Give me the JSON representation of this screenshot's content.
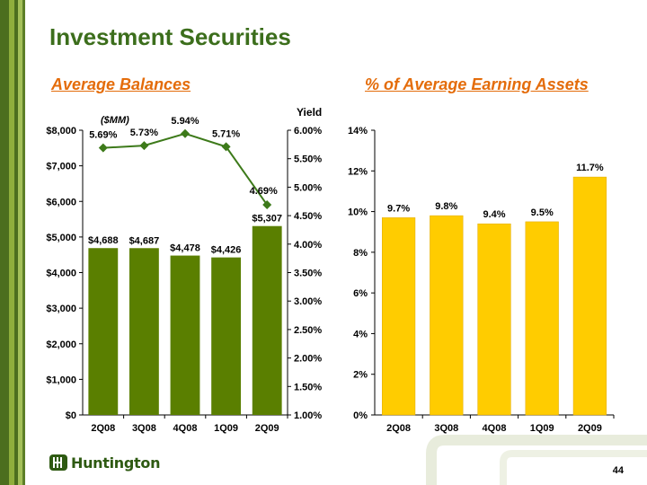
{
  "slide": {
    "title": "Investment Securities",
    "page_number": "44",
    "logo_text": "Huntington",
    "colors": {
      "title": "#3c6e1c",
      "subtitle": "#e46c0a",
      "bar_green": "#5a7f00",
      "line_green": "#3d7a1a",
      "bar_gold": "#ffcc00",
      "stripe_dark": "#4c6e1e",
      "stripe_light": "#8fae3c"
    }
  },
  "chart_data": [
    {
      "type": "bar",
      "title": "Average Balances",
      "unit_label": "($MM)",
      "categories": [
        "2Q08",
        "3Q08",
        "4Q08",
        "1Q09",
        "2Q09"
      ],
      "values": [
        4688,
        4687,
        4478,
        4426,
        5307
      ],
      "value_labels": [
        "$4,688",
        "$4,687",
        "$4,478",
        "$4,426",
        "$5,307"
      ],
      "ylim": [
        0,
        8000
      ],
      "yticks": [
        "$0",
        "$1,000",
        "$2,000",
        "$3,000",
        "$4,000",
        "$5,000",
        "$6,000",
        "$7,000",
        "$8,000"
      ],
      "secondary": {
        "type": "line",
        "label": "Yield",
        "values": [
          5.69,
          5.73,
          5.94,
          5.71,
          4.69
        ],
        "value_labels": [
          "5.69%",
          "5.73%",
          "5.94%",
          "5.71%",
          "4.69%"
        ],
        "ylim": [
          1.0,
          6.0
        ],
        "yticks": [
          "1.00%",
          "1.50%",
          "2.00%",
          "2.50%",
          "3.00%",
          "3.50%",
          "4.00%",
          "4.50%",
          "5.00%",
          "5.50%",
          "6.00%"
        ]
      },
      "grid": false
    },
    {
      "type": "bar",
      "title": "% of Average Earning Assets",
      "categories": [
        "2Q08",
        "3Q08",
        "4Q08",
        "1Q09",
        "2Q09"
      ],
      "values": [
        9.7,
        9.8,
        9.4,
        9.5,
        11.7
      ],
      "value_labels": [
        "9.7%",
        "9.8%",
        "9.4%",
        "9.5%",
        "11.7%"
      ],
      "ylim": [
        0,
        14
      ],
      "yticks": [
        "0%",
        "2%",
        "4%",
        "6%",
        "8%",
        "10%",
        "12%",
        "14%"
      ],
      "grid": false
    }
  ]
}
